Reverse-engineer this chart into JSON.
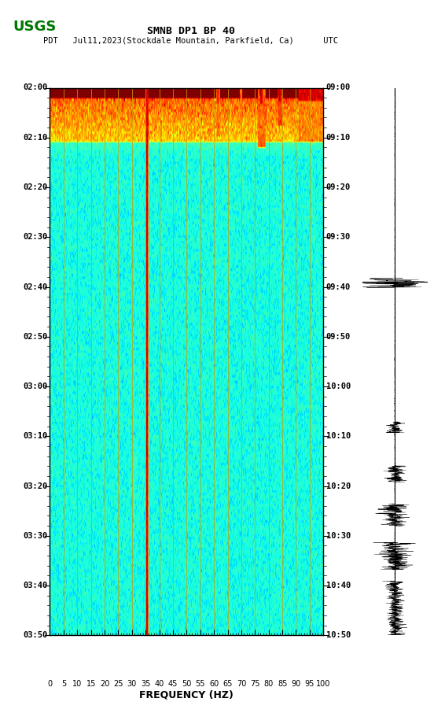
{
  "title_line1": "SMNB DP1 BP 40",
  "title_line2": "PDT   Jul11,2023(Stockdale Mountain, Parkfield, Ca)      UTC",
  "xlabel": "FREQUENCY (HZ)",
  "freq_min": 0,
  "freq_max": 100,
  "freq_ticks": [
    0,
    5,
    10,
    15,
    20,
    25,
    30,
    35,
    40,
    45,
    50,
    55,
    60,
    65,
    70,
    75,
    80,
    85,
    90,
    95,
    100
  ],
  "time_start_pdt": "02:00",
  "time_end_pdt": "03:50",
  "time_start_utc": "09:00",
  "time_end_utc": "10:50",
  "left_yticks": [
    "02:00",
    "02:10",
    "02:20",
    "02:30",
    "02:40",
    "02:50",
    "03:00",
    "03:10",
    "03:20",
    "03:30",
    "03:40",
    "03:50"
  ],
  "right_yticks": [
    "09:00",
    "09:10",
    "09:20",
    "09:30",
    "09:40",
    "09:50",
    "10:00",
    "10:10",
    "10:20",
    "10:30",
    "10:40",
    "10:50"
  ],
  "vertical_grid_freqs": [
    5,
    10,
    15,
    20,
    25,
    30,
    35,
    40,
    45,
    50,
    55,
    60,
    65,
    70,
    75,
    80,
    85,
    90,
    95,
    100
  ],
  "background_color": "#ffffff",
  "colormap": "jet",
  "noise_floor": -160,
  "noise_ceil": -60,
  "usgs_logo_color": "#007700"
}
